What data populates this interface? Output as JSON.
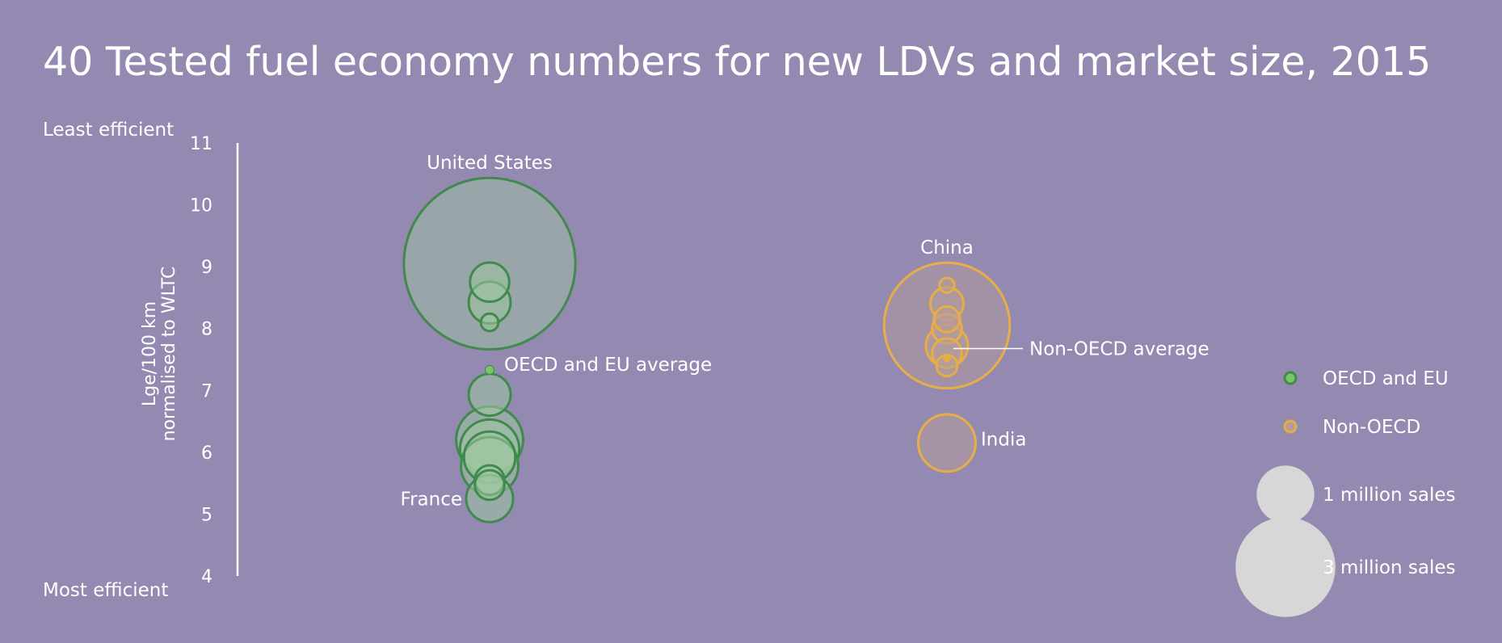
{
  "chart_data": {
    "type": "scatter",
    "title": "40 Tested fuel economy numbers for new LDVs and market size, 2015",
    "ylabel_line1": "Lge/100 km",
    "ylabel_line2": "normalised to WLTC",
    "ylim": [
      4,
      11
    ],
    "y_ticks": [
      "4",
      "5",
      "6",
      "7",
      "8",
      "9",
      "10",
      "11"
    ],
    "top_axis_note": "Least efficient",
    "bottom_axis_note": "Most efficient",
    "grid": false,
    "legend_position": "right",
    "colors": {
      "background": "#9389b1",
      "oecd_stroke": "#3f8a4c",
      "oecd_fill": "#9fc7a0",
      "non_oecd_stroke": "#e7ae46",
      "non_oecd_fill": "#b79d9a",
      "size_legend": "#d6d7d6",
      "text": "#ffffff"
    },
    "series": [
      {
        "name": "OECD and EU",
        "points": [
          {
            "y": 9.05,
            "sales_millions": 6.7,
            "label": "United States"
          },
          {
            "y": 8.75,
            "sales_millions": 0.35
          },
          {
            "y": 8.42,
            "sales_millions": 0.4
          },
          {
            "y": 8.1,
            "sales_millions": 0.07
          },
          {
            "y": 7.33,
            "sales_millions": 0.01
          },
          {
            "y": 6.93,
            "sales_millions": 0.4
          },
          {
            "y": 6.2,
            "sales_millions": 1.02
          },
          {
            "y": 6.05,
            "sales_millions": 0.8
          },
          {
            "y": 5.92,
            "sales_millions": 0.6
          },
          {
            "y": 5.78,
            "sales_millions": 0.75
          },
          {
            "y": 5.55,
            "sales_millions": 0.2
          },
          {
            "y": 5.47,
            "sales_millions": 0.2
          },
          {
            "y": 5.25,
            "sales_millions": 0.5,
            "label": "France"
          }
        ]
      },
      {
        "name": "Non-OECD",
        "points": [
          {
            "y": 8.05,
            "sales_millions": 3.6,
            "label": "China"
          },
          {
            "y": 8.7,
            "sales_millions": 0.05
          },
          {
            "y": 8.4,
            "sales_millions": 0.25
          },
          {
            "y": 8.15,
            "sales_millions": 0.15
          },
          {
            "y": 8.0,
            "sales_millions": 0.2
          },
          {
            "y": 7.72,
            "sales_millions": 0.4
          },
          {
            "y": 7.6,
            "sales_millions": 0.2
          },
          {
            "y": 7.4,
            "sales_millions": 0.1
          },
          {
            "y": 6.15,
            "sales_millions": 0.75,
            "label": "India"
          }
        ]
      }
    ],
    "averages": [
      {
        "name": "OECD and EU average",
        "series": "OECD and EU",
        "y": 7.33
      },
      {
        "name": "Non-OECD average",
        "series": "Non-OECD",
        "y": 7.52
      }
    ],
    "legend": {
      "series_items": [
        "OECD and EU",
        "Non-OECD"
      ],
      "size_items": [
        {
          "label": "1 million sales",
          "sales_millions": 1
        },
        {
          "label": "3 million sales",
          "sales_millions": 3
        }
      ]
    }
  }
}
